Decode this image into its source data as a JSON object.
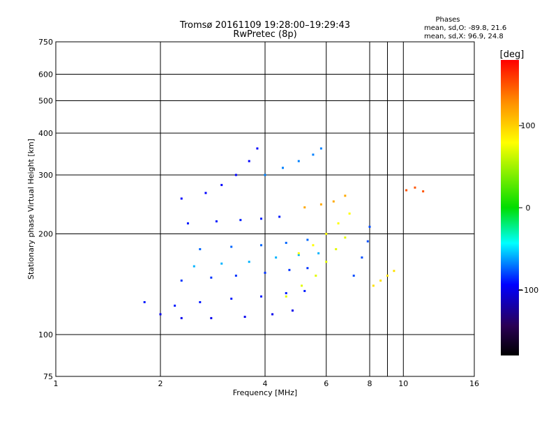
{
  "chart_data": {
    "type": "scatter",
    "title": "Tromsø 20161109 19:28:00–19:29:43",
    "subtitle": "RwPretec (8p)",
    "xlabel": "Frequency [MHz]",
    "ylabel": "Stationary phase Virtual Height [km]",
    "x_scale": "log",
    "y_scale": "log",
    "xlim": [
      1,
      16
    ],
    "ylim": [
      75,
      750
    ],
    "x_ticks": [
      1,
      2,
      4,
      6,
      8,
      10,
      16
    ],
    "y_ticks": [
      75,
      100,
      200,
      300,
      400,
      500,
      600,
      750
    ],
    "x_gridlines": [
      2,
      4,
      6,
      8,
      9,
      10
    ],
    "y_gridlines": [
      100,
      200,
      300,
      400,
      500,
      600
    ],
    "grid": true,
    "info_lines": [
      "Phases",
      "mean, sd,O: -89.8, 21.6",
      "mean, sd,X: 96.9, 24.8"
    ],
    "colorbar": {
      "label": "[deg]",
      "range": [
        -180,
        180
      ],
      "ticks": [
        100,
        0,
        -100
      ],
      "tick_labels": [
        "100",
        "0",
        "−100"
      ],
      "colors": [
        "#ff0000",
        "#ff8c00",
        "#ffff00",
        "#00dd00",
        "#00ffff",
        "#0000ff",
        "#2a0055",
        "#000000"
      ]
    },
    "traces": [
      {
        "phase": -100,
        "points": [
          [
            2.0,
            115
          ],
          [
            2.3,
            112
          ],
          [
            2.8,
            112
          ],
          [
            3.5,
            113
          ],
          [
            4.2,
            115
          ],
          [
            4.8,
            118
          ]
        ]
      },
      {
        "phase": -90,
        "points": [
          [
            1.8,
            125
          ],
          [
            2.2,
            122
          ],
          [
            2.6,
            125
          ],
          [
            3.2,
            128
          ],
          [
            3.9,
            130
          ],
          [
            4.6,
            133
          ],
          [
            5.2,
            135
          ]
        ]
      },
      {
        "phase": -85,
        "points": [
          [
            2.3,
            145
          ],
          [
            2.8,
            148
          ],
          [
            3.3,
            150
          ],
          [
            4.0,
            153
          ],
          [
            4.7,
            156
          ],
          [
            5.3,
            158
          ]
        ]
      },
      {
        "phase": -60,
        "points": [
          [
            2.5,
            160
          ],
          [
            3.0,
            163
          ],
          [
            3.6,
            165
          ],
          [
            4.3,
            170
          ],
          [
            5.0,
            173
          ],
          [
            5.7,
            175
          ]
        ]
      },
      {
        "phase": -75,
        "points": [
          [
            2.6,
            180
          ],
          [
            3.2,
            183
          ],
          [
            3.9,
            185
          ],
          [
            4.6,
            188
          ],
          [
            5.3,
            192
          ]
        ]
      },
      {
        "phase": -90,
        "points": [
          [
            2.4,
            215
          ],
          [
            2.9,
            218
          ],
          [
            3.4,
            220
          ],
          [
            3.9,
            222
          ],
          [
            4.4,
            225
          ]
        ]
      },
      {
        "phase": -95,
        "points": [
          [
            2.3,
            255
          ],
          [
            2.7,
            265
          ],
          [
            3.0,
            280
          ],
          [
            3.3,
            300
          ],
          [
            3.6,
            330
          ],
          [
            3.8,
            360
          ]
        ]
      },
      {
        "phase": -70,
        "points": [
          [
            4.0,
            300
          ],
          [
            4.5,
            315
          ],
          [
            5.0,
            330
          ],
          [
            5.5,
            345
          ],
          [
            5.8,
            360
          ]
        ]
      },
      {
        "phase": 80,
        "points": [
          [
            4.6,
            130
          ],
          [
            5.1,
            140
          ],
          [
            5.6,
            150
          ],
          [
            6.0,
            165
          ],
          [
            6.4,
            180
          ],
          [
            6.8,
            195
          ]
        ]
      },
      {
        "phase": 90,
        "points": [
          [
            5.0,
            175
          ],
          [
            5.5,
            185
          ],
          [
            6.0,
            200
          ],
          [
            6.5,
            215
          ],
          [
            7.0,
            230
          ]
        ]
      },
      {
        "phase": 120,
        "points": [
          [
            5.2,
            240
          ],
          [
            5.8,
            245
          ],
          [
            6.3,
            250
          ],
          [
            6.8,
            260
          ]
        ]
      },
      {
        "phase": -80,
        "points": [
          [
            7.2,
            150
          ],
          [
            7.6,
            170
          ],
          [
            7.9,
            190
          ],
          [
            8.0,
            210
          ]
        ]
      },
      {
        "phase": 100,
        "points": [
          [
            8.2,
            140
          ],
          [
            8.6,
            145
          ],
          [
            9.0,
            150
          ],
          [
            9.4,
            155
          ]
        ]
      },
      {
        "phase": 150,
        "points": [
          [
            10.2,
            270
          ],
          [
            10.8,
            275
          ],
          [
            11.4,
            268
          ]
        ]
      }
    ]
  }
}
